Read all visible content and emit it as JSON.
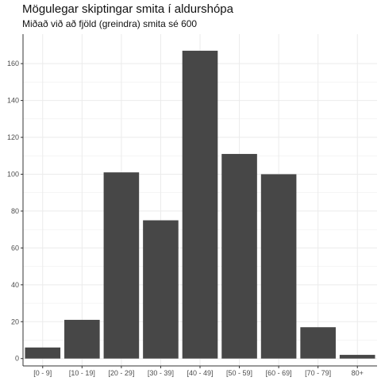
{
  "chart_data": {
    "type": "bar",
    "title": "Mögulegar skiptingar smita í aldurshópa",
    "subtitle": "Miðað við að fjöld (greindra) smita sé 600",
    "xlabel": "",
    "ylabel": "",
    "categories": [
      "[0 - 9]",
      "[10 - 19]",
      "[20 - 29]",
      "[30 - 39]",
      "[40 - 49]",
      "[50 - 59]",
      "[60 - 69]",
      "[70 - 79]",
      "80+"
    ],
    "values": [
      6,
      21,
      101,
      75,
      167,
      111,
      100,
      17,
      2
    ],
    "ylim": [
      -4,
      176
    ],
    "yticks": [
      0,
      20,
      40,
      60,
      80,
      100,
      120,
      140,
      160
    ],
    "grid": true,
    "legend": "none",
    "colors": {
      "bar": "#474747",
      "grid": "#ebebeb",
      "axis": "#333333",
      "text": "#4d4d4d"
    }
  }
}
